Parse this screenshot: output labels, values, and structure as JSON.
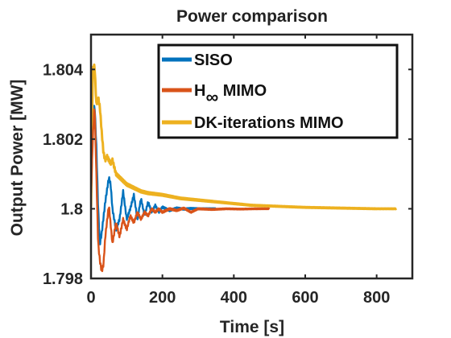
{
  "chart_data": {
    "type": "line",
    "title": "Power comparison",
    "xlabel": "Time [s]",
    "ylabel": "Output Power [MW]",
    "xlim": [
      0,
      900
    ],
    "ylim": [
      1.798,
      1.805
    ],
    "xticks": [
      0,
      200,
      400,
      600,
      800
    ],
    "yticks": [
      1.798,
      1.8,
      1.802,
      1.804
    ],
    "xtick_labels": [
      "0",
      "200",
      "400",
      "600",
      "800"
    ],
    "ytick_labels": [
      "1.798",
      "1.8",
      "1.802",
      "1.804"
    ],
    "grid": false,
    "legend_position": "top-right",
    "series": [
      {
        "name": "SISO",
        "color": "#0072BD",
        "t_end": 350,
        "x": [
          0,
          5,
          10,
          15,
          20,
          25,
          30,
          40,
          50,
          55,
          60,
          70,
          80,
          90,
          100,
          110,
          120,
          130,
          140,
          150,
          160,
          170,
          180,
          190,
          200,
          220,
          240,
          260,
          280,
          300,
          320,
          350
        ],
        "y": [
          1.8004,
          1.8025,
          1.803,
          1.8018,
          1.8,
          1.799,
          1.7993,
          1.8002,
          1.8009,
          1.8007,
          1.8,
          1.7994,
          1.7997,
          1.8005,
          1.7997,
          1.8,
          1.8004,
          1.7997,
          1.8003,
          1.7998,
          1.8002,
          1.7999,
          1.8001,
          1.7999,
          1.80005,
          1.79995,
          1.80002,
          1.79999,
          1.80001,
          1.8,
          1.8,
          1.8
        ]
      },
      {
        "name": "H∞ MIMO",
        "label_main": "H",
        "label_sub": "∞",
        "label_rest": " MIMO",
        "color": "#D95319",
        "t_end": 500,
        "x": [
          0,
          5,
          10,
          15,
          20,
          25,
          30,
          35,
          40,
          50,
          60,
          70,
          80,
          90,
          100,
          110,
          120,
          130,
          140,
          150,
          160,
          170,
          180,
          190,
          200,
          220,
          240,
          260,
          280,
          300,
          340,
          380,
          420,
          460,
          500
        ],
        "y": [
          1.8004,
          1.802,
          1.803,
          1.801,
          1.799,
          1.7985,
          1.7982,
          1.7984,
          1.7992,
          1.8001,
          1.799,
          1.7996,
          1.7992,
          1.7997,
          1.7994,
          1.7998,
          1.7996,
          1.7999,
          1.7997,
          1.7999,
          1.7998,
          1.8,
          1.7999,
          1.8,
          1.7999,
          1.8,
          1.79995,
          1.80002,
          1.7999,
          1.8,
          1.79998,
          1.8,
          1.79999,
          1.8,
          1.8
        ]
      },
      {
        "name": "DK-iterations MIMO",
        "color": "#EDB120",
        "t_end": 855,
        "x": [
          0,
          5,
          10,
          15,
          20,
          25,
          30,
          35,
          40,
          45,
          50,
          55,
          60,
          65,
          70,
          80,
          90,
          100,
          120,
          140,
          160,
          200,
          250,
          300,
          350,
          400,
          450,
          500,
          550,
          600,
          650,
          700,
          750,
          800,
          855
        ],
        "y": [
          1.8,
          1.804,
          1.8041,
          1.803,
          1.8032,
          1.8029,
          1.8022,
          1.8016,
          1.8014,
          1.8015,
          1.8014,
          1.8013,
          1.8014,
          1.8012,
          1.801,
          1.8009,
          1.8008,
          1.8007,
          1.8006,
          1.8005,
          1.80045,
          1.8004,
          1.8003,
          1.80025,
          1.8002,
          1.80015,
          1.8001,
          1.80008,
          1.80006,
          1.80004,
          1.80003,
          1.80002,
          1.80001,
          1.8,
          1.8
        ]
      }
    ]
  }
}
